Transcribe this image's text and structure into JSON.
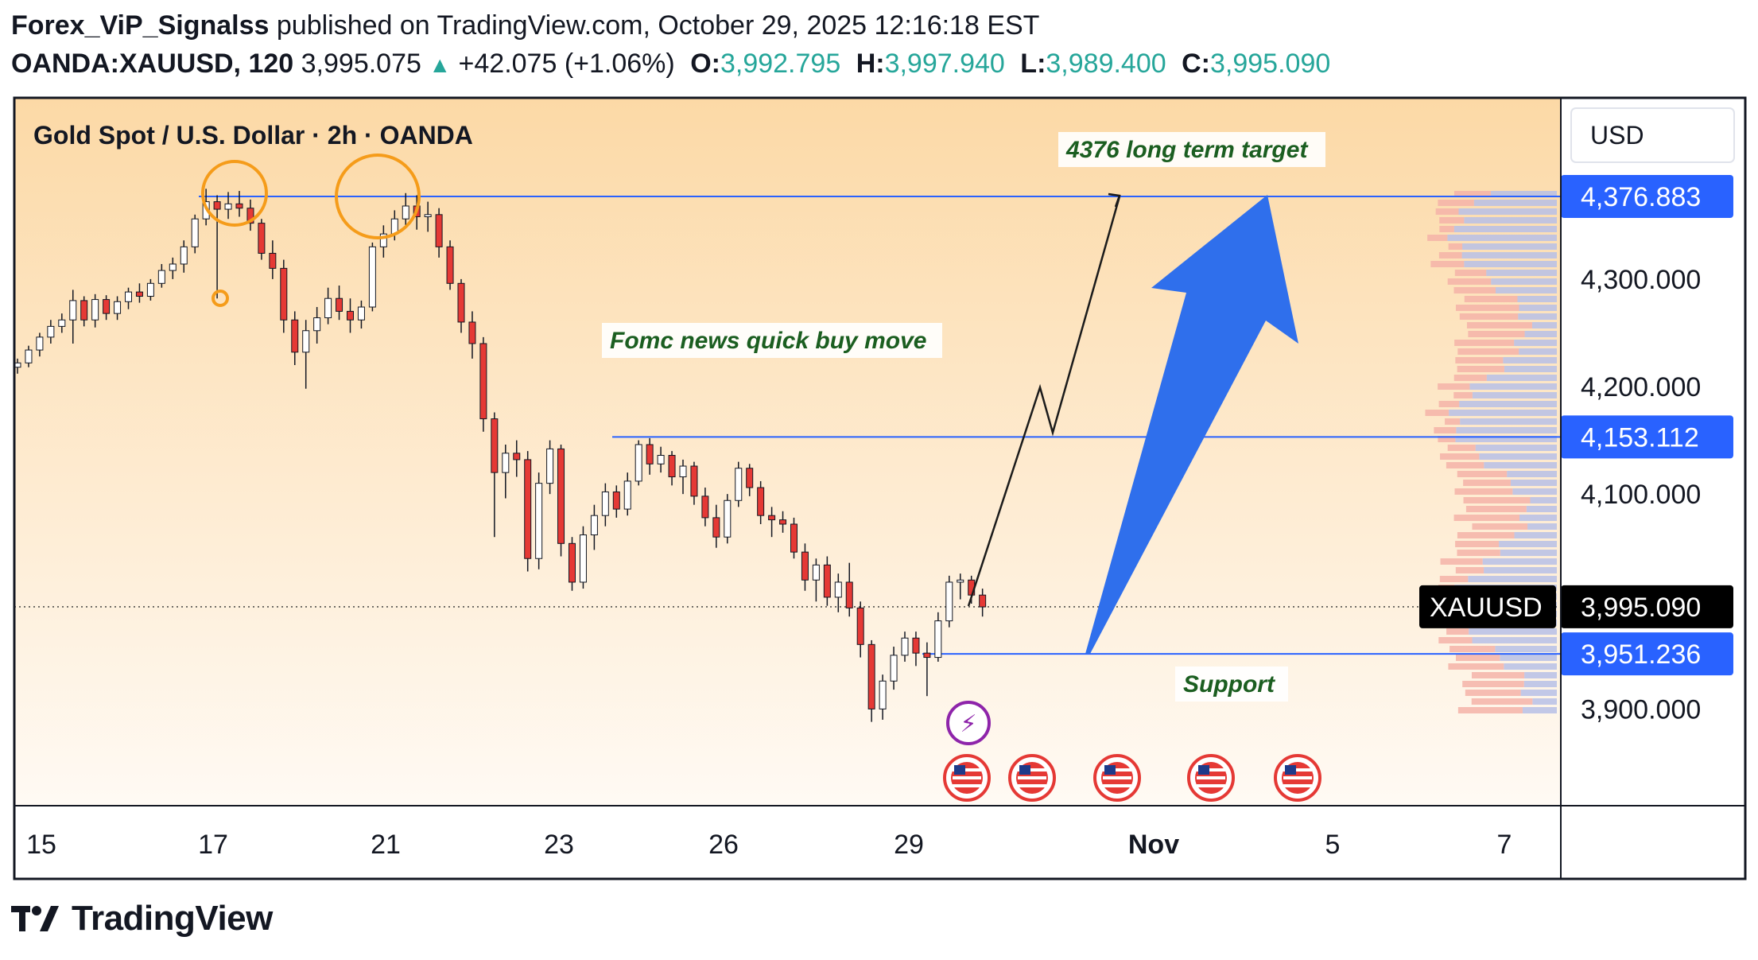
{
  "header": {
    "author": "Forex_ViP_Signalss",
    "published": "published on TradingView.com, October 29, 2025 12:16:18 EST",
    "symbol": "OANDA:XAUUSD, 120",
    "last": "3,995.075",
    "change": "+42.075 (+1.06%)",
    "o_label": "O:",
    "o_value": "3,992.795",
    "h_label": "H:",
    "h_value": "3,997.940",
    "l_label": "L:",
    "l_value": "3,989.400",
    "c_label": "C:",
    "c_value": "3,995.090"
  },
  "footer": {
    "brand": "TradingView",
    "logo_icon": "tradingview-logo-icon"
  },
  "chart_data": {
    "type": "candlestick",
    "title": "Gold Spot / U.S. Dollar · 2h · OANDA",
    "currency": "USD",
    "x_ticks": [
      "15",
      "17",
      "21",
      "23",
      "26",
      "29",
      "Nov",
      "5",
      "7"
    ],
    "y_ticks": [
      "4,300.000",
      "4,200.000",
      "4,100.000",
      "3,900.000"
    ],
    "ylim": [
      3840,
      4440
    ],
    "price_tags": [
      {
        "label": "",
        "value": 4376.883,
        "text": "4,376.883"
      },
      {
        "label": "",
        "value": 4153.112,
        "text": "4,153.112"
      },
      {
        "label": "XAUUSD",
        "value": 3995.09,
        "text": "3,995.090"
      },
      {
        "label": "",
        "value": 3951.236,
        "text": "3,951.236"
      }
    ],
    "horizontal_lines": [
      4376.883,
      4153.112,
      3951.236
    ],
    "current_price": 3995.09,
    "annotations": [
      {
        "text": "4376 long term target"
      },
      {
        "text": "Fomc news quick buy move"
      },
      {
        "text": "Support"
      }
    ],
    "colors": {
      "up": "#131722",
      "down": "#e53935",
      "lines": "#2962ff",
      "arrow": "#2f6fec",
      "circles": "#f59c1a",
      "annotation_text": "#1b5e20",
      "tag": "#2962ff"
    },
    "candles": [
      [
        4218,
        4226,
        4212,
        4222
      ],
      [
        4222,
        4238,
        4218,
        4234
      ],
      [
        4234,
        4250,
        4228,
        4246
      ],
      [
        4246,
        4262,
        4240,
        4256
      ],
      [
        4256,
        4268,
        4250,
        4262
      ],
      [
        4262,
        4290,
        4240,
        4280
      ],
      [
        4280,
        4284,
        4256,
        4262
      ],
      [
        4262,
        4286,
        4255,
        4281
      ],
      [
        4281,
        4285,
        4262,
        4268
      ],
      [
        4268,
        4284,
        4262,
        4279
      ],
      [
        4279,
        4292,
        4272,
        4288
      ],
      [
        4288,
        4296,
        4278,
        4284
      ],
      [
        4284,
        4300,
        4280,
        4296
      ],
      [
        4296,
        4314,
        4292,
        4308
      ],
      [
        4308,
        4320,
        4300,
        4314
      ],
      [
        4314,
        4336,
        4306,
        4330
      ],
      [
        4330,
        4360,
        4324,
        4356
      ],
      [
        4356,
        4384,
        4350,
        4372
      ],
      [
        4372,
        4378,
        4282,
        4365
      ],
      [
        4365,
        4381,
        4356,
        4370
      ],
      [
        4370,
        4382,
        4358,
        4366
      ],
      [
        4366,
        4374,
        4345,
        4352
      ],
      [
        4352,
        4356,
        4318,
        4324
      ],
      [
        4324,
        4336,
        4300,
        4310
      ],
      [
        4310,
        4318,
        4250,
        4262
      ],
      [
        4262,
        4270,
        4220,
        4232
      ],
      [
        4232,
        4262,
        4198,
        4252
      ],
      [
        4252,
        4274,
        4240,
        4264
      ],
      [
        4264,
        4292,
        4258,
        4282
      ],
      [
        4282,
        4294,
        4262,
        4270
      ],
      [
        4270,
        4282,
        4250,
        4262
      ],
      [
        4262,
        4280,
        4254,
        4274
      ],
      [
        4274,
        4334,
        4270,
        4330
      ],
      [
        4330,
        4350,
        4320,
        4342
      ],
      [
        4342,
        4364,
        4336,
        4356
      ],
      [
        4356,
        4380,
        4350,
        4368
      ],
      [
        4368,
        4378,
        4346,
        4358
      ],
      [
        4358,
        4372,
        4344,
        4360
      ],
      [
        4360,
        4366,
        4320,
        4330
      ],
      [
        4330,
        4336,
        4290,
        4296
      ],
      [
        4296,
        4300,
        4250,
        4260
      ],
      [
        4260,
        4270,
        4226,
        4240
      ],
      [
        4240,
        4246,
        4158,
        4170
      ],
      [
        4170,
        4176,
        4060,
        4120
      ],
      [
        4120,
        4146,
        4096,
        4138
      ],
      [
        4138,
        4150,
        4116,
        4132
      ],
      [
        4132,
        4140,
        4028,
        4040
      ],
      [
        4040,
        4120,
        4030,
        4110
      ],
      [
        4110,
        4150,
        4100,
        4142
      ],
      [
        4142,
        4146,
        4042,
        4054
      ],
      [
        4054,
        4060,
        4010,
        4018
      ],
      [
        4018,
        4070,
        4012,
        4062
      ],
      [
        4062,
        4090,
        4048,
        4080
      ],
      [
        4080,
        4110,
        4070,
        4102
      ],
      [
        4102,
        4108,
        4078,
        4086
      ],
      [
        4086,
        4120,
        4080,
        4112
      ],
      [
        4112,
        4150,
        4108,
        4146
      ],
      [
        4146,
        4152,
        4118,
        4128
      ],
      [
        4128,
        4144,
        4120,
        4136
      ],
      [
        4136,
        4140,
        4108,
        4116
      ],
      [
        4116,
        4132,
        4100,
        4126
      ],
      [
        4126,
        4130,
        4090,
        4098
      ],
      [
        4098,
        4106,
        4070,
        4078
      ],
      [
        4078,
        4090,
        4050,
        4060
      ],
      [
        4060,
        4100,
        4054,
        4094
      ],
      [
        4094,
        4130,
        4088,
        4124
      ],
      [
        4124,
        4128,
        4098,
        4106
      ],
      [
        4106,
        4112,
        4072,
        4080
      ],
      [
        4080,
        4088,
        4060,
        4076
      ],
      [
        4076,
        4084,
        4064,
        4072
      ],
      [
        4072,
        4078,
        4040,
        4046
      ],
      [
        4046,
        4054,
        4010,
        4020
      ],
      [
        4020,
        4040,
        4000,
        4034
      ],
      [
        4034,
        4042,
        3996,
        4004
      ],
      [
        4004,
        4026,
        3990,
        4018
      ],
      [
        4018,
        4036,
        3986,
        3994
      ],
      [
        3994,
        4000,
        3948,
        3960
      ],
      [
        3960,
        3964,
        3888,
        3900
      ],
      [
        3900,
        3932,
        3890,
        3926
      ],
      [
        3926,
        3958,
        3918,
        3950
      ],
      [
        3950,
        3972,
        3944,
        3966
      ],
      [
        3966,
        3972,
        3940,
        3952
      ],
      [
        3952,
        3962,
        3912,
        3948
      ],
      [
        3948,
        3990,
        3944,
        3982
      ],
      [
        3982,
        4024,
        3976,
        4018
      ],
      [
        4018,
        4026,
        4002,
        4020
      ],
      [
        4020,
        4024,
        3998,
        4006
      ],
      [
        4006,
        4012,
        3986,
        3995
      ]
    ]
  }
}
